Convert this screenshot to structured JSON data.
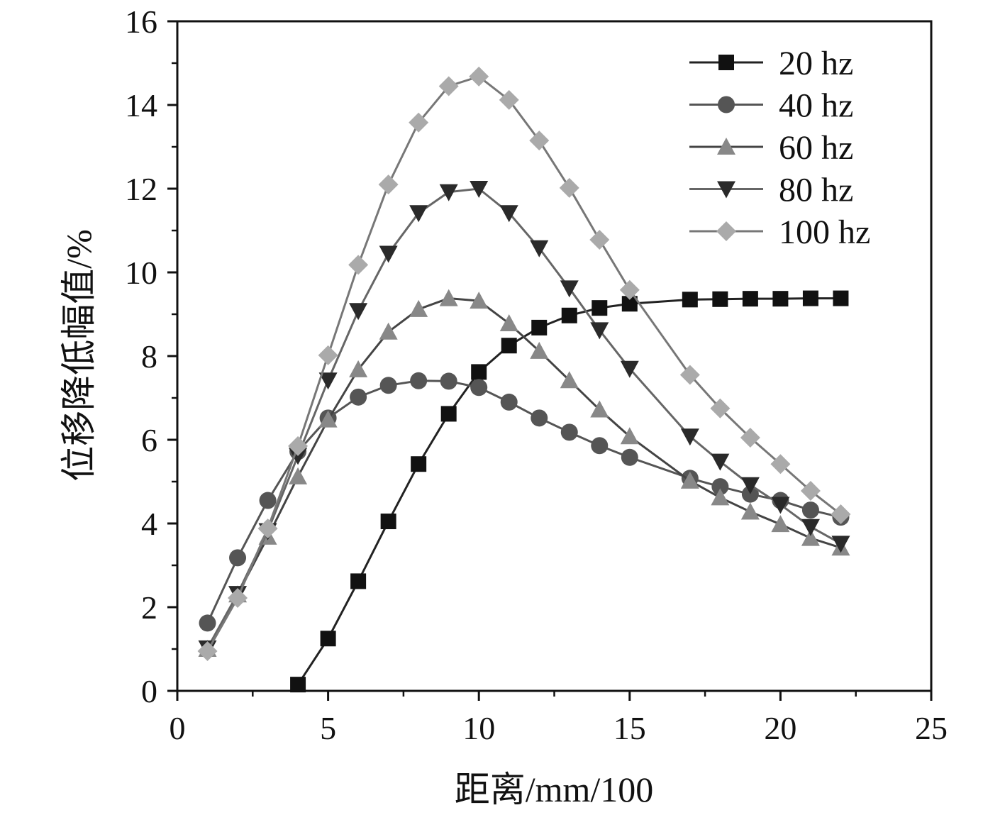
{
  "chart_data": {
    "type": "line",
    "title": "",
    "xlabel": "距离/mm/100",
    "ylabel": "位移降低幅值/%",
    "xlim": [
      0,
      25
    ],
    "ylim": [
      0,
      16
    ],
    "xticks": [
      "0",
      "5",
      "10",
      "15",
      "20",
      "25"
    ],
    "yticks": [
      "0",
      "2",
      "4",
      "6",
      "8",
      "10",
      "12",
      "14",
      "16"
    ],
    "legend_position": "top-right",
    "series": [
      {
        "name": "20 hz",
        "marker": "square",
        "line_color": "#222222",
        "marker_color": "#111111",
        "x": [
          4,
          5,
          6,
          7,
          8,
          9,
          10,
          11,
          12,
          13,
          14,
          15,
          17,
          18,
          19,
          20,
          21,
          22
        ],
        "y": [
          0.15,
          1.25,
          2.62,
          4.05,
          5.42,
          6.62,
          7.62,
          8.25,
          8.68,
          8.97,
          9.15,
          9.25,
          9.35,
          9.36,
          9.37,
          9.37,
          9.38,
          9.38
        ]
      },
      {
        "name": "40 hz",
        "marker": "circle",
        "line_color": "#555555",
        "marker_color": "#555555",
        "x": [
          1,
          2,
          3,
          4,
          5,
          6,
          7,
          8,
          9,
          10,
          11,
          12,
          13,
          14,
          15,
          17,
          18,
          19,
          20,
          21,
          22
        ],
        "y": [
          1.62,
          3.18,
          4.55,
          5.72,
          6.52,
          7.02,
          7.3,
          7.41,
          7.4,
          7.25,
          6.9,
          6.52,
          6.18,
          5.86,
          5.58,
          5.08,
          4.88,
          4.7,
          4.55,
          4.32,
          4.15
        ]
      },
      {
        "name": "60 hz",
        "marker": "triangle-up",
        "line_color": "#444444",
        "marker_color": "#888888",
        "x": [
          1,
          2,
          3,
          4,
          5,
          6,
          7,
          8,
          9,
          10,
          11,
          12,
          13,
          14,
          15,
          17,
          18,
          19,
          20,
          21,
          22
        ],
        "y": [
          1.0,
          2.3,
          3.68,
          5.12,
          6.48,
          7.68,
          8.58,
          9.12,
          9.38,
          9.32,
          8.78,
          8.12,
          7.42,
          6.72,
          6.08,
          5.02,
          4.62,
          4.28,
          3.98,
          3.65,
          3.42
        ]
      },
      {
        "name": "80 hz",
        "marker": "triangle-down",
        "line_color": "#666666",
        "marker_color": "#2a2a2a",
        "x": [
          1,
          2,
          3,
          4,
          5,
          6,
          7,
          8,
          9,
          10,
          11,
          12,
          13,
          14,
          15,
          17,
          18,
          19,
          20,
          21,
          22
        ],
        "y": [
          1.02,
          2.32,
          3.82,
          5.62,
          7.42,
          9.08,
          10.45,
          11.42,
          11.92,
          12.0,
          11.42,
          10.58,
          9.62,
          8.62,
          7.7,
          6.08,
          5.48,
          4.92,
          4.45,
          3.92,
          3.52
        ]
      },
      {
        "name": "100 hz",
        "marker": "diamond",
        "line_color": "#777777",
        "marker_color": "#aaaaaa",
        "x": [
          1,
          2,
          3,
          4,
          5,
          6,
          7,
          8,
          9,
          10,
          11,
          12,
          13,
          14,
          15,
          17,
          18,
          19,
          20,
          21,
          22
        ],
        "y": [
          0.95,
          2.22,
          3.88,
          5.85,
          8.02,
          10.18,
          12.1,
          13.58,
          14.45,
          14.68,
          14.12,
          13.15,
          12.02,
          10.78,
          9.58,
          7.55,
          6.75,
          6.05,
          5.42,
          4.78,
          4.22
        ]
      }
    ]
  }
}
